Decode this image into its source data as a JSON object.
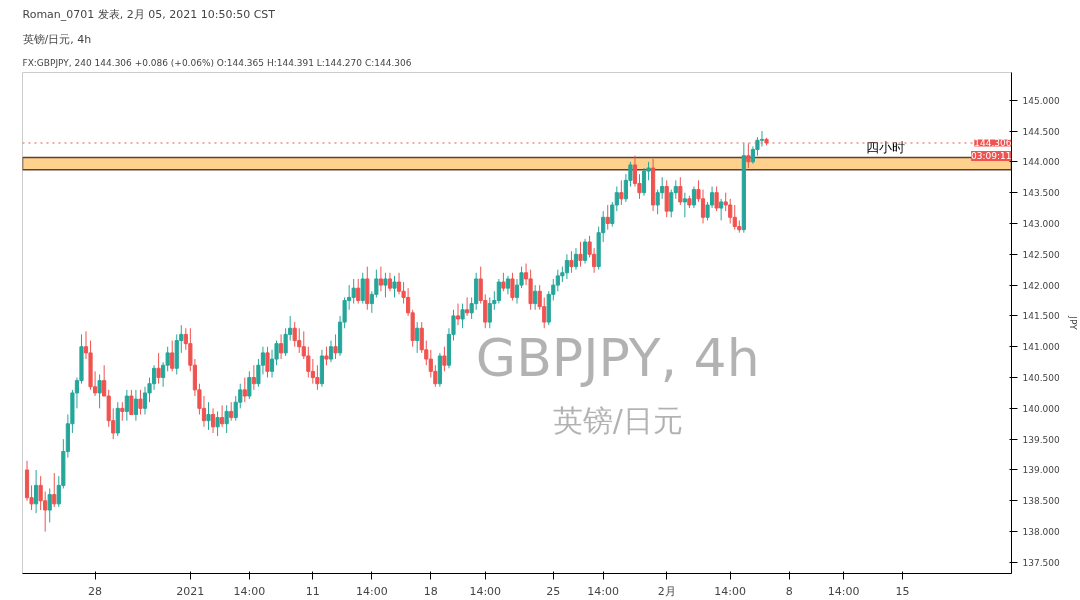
{
  "chart_data": {
    "type": "candlestick",
    "title": "Roman_0701 发表, 2月 05, 2021 10:50:50 CST",
    "subtitle": "FX:GBPJPY, 240 144.306 +0.086 (+0.06%) O:144.365 H:144.391 L:144.270 C:144.306",
    "ylabel": "JPY",
    "annotations": [
      "英镑/日元, 4h",
      "03:09:11",
      "GBPJPY, 4h",
      "英镑/日元"
    ],
    "categories": [
      null,
      null,
      null,
      null,
      null,
      null,
      null,
      null,
      null,
      null,
      null,
      null,
      null,
      null,
      null,
      "28",
      null,
      null,
      null,
      null,
      null,
      null,
      null,
      null,
      null,
      null,
      null,
      null,
      null,
      null,
      null,
      null,
      null,
      null,
      null,
      null,
      "2021",
      null,
      null,
      null,
      null,
      null,
      null,
      null,
      null,
      null,
      null,
      null,
      null,
      "14:00",
      null,
      null,
      null,
      null,
      null,
      null,
      null,
      null,
      null,
      null,
      null,
      null,
      null,
      "11",
      null,
      null,
      null,
      null,
      null,
      null,
      null,
      null,
      null,
      null,
      null,
      null,
      "14:00",
      null,
      null,
      null,
      null,
      null,
      null,
      null,
      null,
      null,
      null,
      null,
      null,
      "18",
      null,
      null,
      null,
      null,
      null,
      null,
      null,
      null,
      null,
      null,
      null,
      "14:00",
      null,
      null,
      null,
      null,
      null,
      null,
      null,
      null,
      null,
      null,
      null,
      null,
      null,
      null,
      "25",
      null,
      null,
      null,
      null,
      null,
      null,
      null,
      null,
      null,
      null,
      "14:00",
      null,
      null,
      null,
      null,
      null,
      null,
      null,
      null,
      null,
      null,
      null,
      null,
      null,
      "2月",
      null,
      null,
      null,
      null,
      null,
      null,
      null,
      null,
      null,
      null,
      null,
      null,
      null,
      "14:00",
      null,
      null,
      null,
      null,
      null,
      null,
      null,
      null,
      null,
      null,
      null,
      null,
      "8",
      null,
      null,
      null,
      null,
      null,
      null,
      null,
      null,
      null,
      null,
      null,
      "14:00",
      null,
      null,
      null,
      null,
      null,
      null,
      null,
      null,
      null,
      null,
      null,
      null,
      "15",
      null,
      null,
      null,
      null,
      null,
      null,
      null,
      null,
      null,
      null,
      null,
      null,
      null,
      null,
      null,
      null,
      null,
      null,
      null,
      null,
      null,
      null,
      null
    ],
    "ohlc": [
      [
        139.0,
        139.15,
        138.5,
        138.55
      ],
      [
        138.55,
        138.75,
        138.35,
        138.45
      ],
      [
        138.45,
        139.0,
        138.3,
        138.75
      ],
      [
        138.75,
        138.9,
        138.35,
        138.5
      ],
      [
        138.5,
        138.65,
        138.0,
        138.35
      ],
      [
        138.35,
        138.7,
        138.15,
        138.6
      ],
      [
        138.6,
        138.95,
        138.4,
        138.45
      ],
      [
        138.45,
        138.9,
        138.4,
        138.75
      ],
      [
        138.75,
        139.5,
        138.7,
        139.3
      ],
      [
        139.3,
        139.9,
        139.2,
        139.75
      ],
      [
        139.75,
        140.3,
        139.6,
        140.25
      ],
      [
        140.25,
        140.5,
        140.0,
        140.45
      ],
      [
        140.45,
        141.2,
        140.4,
        141.0
      ],
      [
        141.0,
        141.25,
        140.8,
        140.9
      ],
      [
        140.9,
        141.1,
        140.3,
        140.35
      ],
      [
        140.35,
        140.6,
        140.2,
        140.25
      ],
      [
        140.25,
        140.55,
        140.0,
        140.45
      ],
      [
        140.45,
        140.7,
        140.2,
        140.2
      ],
      [
        140.2,
        140.3,
        139.7,
        139.8
      ],
      [
        139.8,
        140.0,
        139.5,
        139.6
      ],
      [
        139.6,
        140.1,
        139.55,
        140.0
      ],
      [
        140.0,
        140.1,
        139.8,
        139.95
      ],
      [
        139.95,
        140.3,
        139.8,
        140.2
      ],
      [
        140.2,
        140.3,
        139.9,
        139.9
      ],
      [
        139.9,
        140.3,
        139.8,
        140.15
      ],
      [
        140.15,
        140.3,
        139.9,
        140.0
      ],
      [
        140.0,
        140.35,
        139.9,
        140.25
      ],
      [
        140.25,
        140.5,
        140.1,
        140.4
      ],
      [
        140.4,
        140.7,
        140.3,
        140.65
      ],
      [
        140.65,
        140.9,
        140.4,
        140.5
      ],
      [
        140.5,
        140.75,
        140.35,
        140.7
      ],
      [
        140.7,
        141.0,
        140.6,
        140.9
      ],
      [
        140.9,
        141.1,
        140.6,
        140.65
      ],
      [
        140.65,
        141.2,
        140.55,
        141.1
      ],
      [
        141.1,
        141.35,
        140.9,
        141.2
      ],
      [
        141.2,
        141.3,
        140.95,
        141.05
      ],
      [
        141.05,
        141.3,
        140.6,
        140.7
      ],
      [
        140.7,
        140.8,
        140.2,
        140.3
      ],
      [
        140.3,
        140.4,
        139.9,
        140.0
      ],
      [
        140.0,
        140.2,
        139.7,
        139.8
      ],
      [
        139.8,
        140.1,
        139.65,
        139.9
      ],
      [
        139.9,
        140.0,
        139.6,
        139.7
      ],
      [
        139.7,
        139.95,
        139.55,
        139.85
      ],
      [
        139.85,
        140.05,
        139.7,
        139.75
      ],
      [
        139.75,
        140.05,
        139.6,
        139.95
      ],
      [
        139.95,
        140.1,
        139.8,
        139.85
      ],
      [
        139.85,
        140.2,
        139.8,
        140.1
      ],
      [
        140.1,
        140.4,
        140.0,
        140.3
      ],
      [
        140.3,
        140.5,
        140.1,
        140.2
      ],
      [
        140.2,
        140.6,
        140.15,
        140.5
      ],
      [
        140.5,
        140.7,
        140.3,
        140.4
      ],
      [
        140.4,
        140.8,
        140.35,
        140.7
      ],
      [
        140.7,
        141.0,
        140.55,
        140.9
      ],
      [
        140.9,
        141.0,
        140.5,
        140.6
      ],
      [
        140.6,
        140.95,
        140.5,
        140.8
      ],
      [
        140.8,
        141.1,
        140.7,
        141.05
      ],
      [
        141.05,
        141.2,
        140.8,
        140.9
      ],
      [
        140.9,
        141.3,
        140.85,
        141.2
      ],
      [
        141.2,
        141.5,
        141.1,
        141.3
      ],
      [
        141.3,
        141.4,
        141.0,
        141.1
      ],
      [
        141.1,
        141.3,
        140.9,
        141.0
      ],
      [
        141.0,
        141.25,
        140.8,
        140.85
      ],
      [
        140.85,
        141.0,
        140.5,
        140.6
      ],
      [
        140.6,
        140.8,
        140.4,
        140.5
      ],
      [
        140.5,
        140.7,
        140.3,
        140.4
      ],
      [
        140.4,
        140.95,
        140.35,
        140.85
      ],
      [
        140.85,
        141.0,
        140.7,
        140.8
      ],
      [
        140.8,
        141.1,
        140.75,
        141.0
      ],
      [
        141.0,
        141.2,
        140.8,
        140.9
      ],
      [
        140.9,
        141.5,
        140.85,
        141.4
      ],
      [
        141.4,
        141.8,
        141.3,
        141.75
      ],
      [
        141.75,
        142.0,
        141.6,
        141.8
      ],
      [
        141.8,
        142.1,
        141.7,
        141.95
      ],
      [
        141.95,
        142.1,
        141.7,
        141.75
      ],
      [
        141.75,
        142.2,
        141.7,
        142.1
      ],
      [
        142.1,
        142.3,
        141.6,
        141.7
      ],
      [
        141.7,
        141.9,
        141.55,
        141.85
      ],
      [
        141.85,
        142.25,
        141.8,
        142.1
      ],
      [
        142.1,
        142.3,
        141.9,
        142.0
      ],
      [
        142.0,
        142.2,
        141.8,
        142.1
      ],
      [
        142.1,
        142.2,
        141.9,
        141.95
      ],
      [
        141.95,
        142.15,
        141.8,
        142.05
      ],
      [
        142.05,
        142.2,
        141.85,
        141.9
      ],
      [
        141.9,
        142.05,
        141.7,
        141.8
      ],
      [
        141.8,
        141.95,
        141.5,
        141.55
      ],
      [
        141.55,
        141.6,
        141.0,
        141.1
      ],
      [
        141.1,
        141.4,
        140.9,
        141.3
      ],
      [
        141.3,
        141.4,
        140.9,
        140.95
      ],
      [
        140.95,
        141.1,
        140.7,
        140.8
      ],
      [
        140.8,
        140.95,
        140.5,
        140.6
      ],
      [
        140.6,
        140.7,
        140.35,
        140.4
      ],
      [
        140.4,
        140.9,
        140.35,
        140.85
      ],
      [
        140.85,
        141.0,
        140.6,
        140.7
      ],
      [
        140.7,
        141.3,
        140.65,
        141.2
      ],
      [
        141.2,
        141.6,
        141.1,
        141.5
      ],
      [
        141.5,
        141.7,
        141.35,
        141.45
      ],
      [
        141.45,
        141.7,
        141.3,
        141.6
      ],
      [
        141.6,
        141.8,
        141.5,
        141.55
      ],
      [
        141.55,
        141.8,
        141.45,
        141.7
      ],
      [
        141.7,
        142.2,
        141.6,
        142.1
      ],
      [
        142.1,
        142.3,
        141.7,
        141.75
      ],
      [
        141.75,
        141.85,
        141.3,
        141.4
      ],
      [
        141.4,
        141.8,
        141.3,
        141.7
      ],
      [
        141.7,
        141.9,
        141.6,
        141.75
      ],
      [
        141.75,
        142.1,
        141.7,
        142.05
      ],
      [
        142.05,
        142.2,
        141.9,
        141.95
      ],
      [
        141.95,
        142.15,
        141.85,
        142.1
      ],
      [
        142.1,
        142.2,
        141.75,
        141.8
      ],
      [
        141.8,
        142.1,
        141.7,
        142.0
      ],
      [
        142.0,
        142.3,
        141.95,
        142.2
      ],
      [
        142.2,
        142.35,
        142.0,
        142.1
      ],
      [
        142.1,
        142.25,
        141.6,
        141.7
      ],
      [
        141.7,
        142.0,
        141.6,
        141.9
      ],
      [
        141.9,
        142.0,
        141.6,
        141.65
      ],
      [
        141.65,
        141.8,
        141.3,
        141.4
      ],
      [
        141.4,
        141.9,
        141.35,
        141.85
      ],
      [
        141.85,
        142.1,
        141.75,
        142.0
      ],
      [
        142.0,
        142.25,
        141.9,
        142.15
      ],
      [
        142.15,
        142.3,
        142.05,
        142.2
      ],
      [
        142.2,
        142.5,
        142.1,
        142.4
      ],
      [
        142.4,
        142.55,
        142.2,
        142.3
      ],
      [
        142.3,
        142.6,
        142.25,
        142.5
      ],
      [
        142.5,
        142.7,
        142.3,
        142.4
      ],
      [
        142.4,
        142.75,
        142.35,
        142.7
      ],
      [
        142.7,
        142.8,
        142.45,
        142.5
      ],
      [
        142.5,
        142.6,
        142.2,
        142.3
      ],
      [
        142.3,
        142.95,
        142.25,
        142.85
      ],
      [
        142.85,
        143.2,
        142.7,
        143.1
      ],
      [
        143.1,
        143.3,
        142.9,
        143.0
      ],
      [
        143.0,
        143.35,
        142.95,
        143.3
      ],
      [
        143.3,
        143.6,
        143.2,
        143.5
      ],
      [
        143.5,
        143.7,
        143.3,
        143.4
      ],
      [
        143.4,
        143.8,
        143.35,
        143.7
      ],
      [
        143.7,
        144.0,
        143.6,
        143.95
      ],
      [
        143.95,
        144.1,
        143.6,
        143.65
      ],
      [
        143.65,
        143.8,
        143.4,
        143.5
      ],
      [
        143.5,
        143.9,
        143.45,
        143.85
      ],
      [
        143.85,
        144.0,
        143.7,
        143.9
      ],
      [
        143.9,
        144.05,
        143.2,
        143.3
      ],
      [
        143.3,
        143.55,
        143.15,
        143.5
      ],
      [
        143.5,
        143.75,
        143.4,
        143.6
      ],
      [
        143.6,
        143.7,
        143.1,
        143.2
      ],
      [
        143.2,
        143.55,
        143.1,
        143.5
      ],
      [
        143.5,
        143.7,
        143.4,
        143.6
      ],
      [
        143.6,
        143.75,
        143.3,
        143.35
      ],
      [
        143.35,
        143.5,
        143.1,
        143.4
      ],
      [
        143.4,
        143.45,
        143.25,
        143.3
      ],
      [
        143.3,
        143.6,
        143.25,
        143.55
      ],
      [
        143.55,
        143.7,
        143.35,
        143.4
      ],
      [
        143.4,
        143.55,
        143.0,
        143.1
      ],
      [
        143.1,
        143.35,
        143.05,
        143.3
      ],
      [
        143.3,
        143.6,
        143.25,
        143.5
      ],
      [
        143.5,
        143.6,
        143.2,
        143.25
      ],
      [
        143.25,
        143.4,
        143.05,
        143.35
      ],
      [
        143.35,
        143.5,
        143.2,
        143.3
      ],
      [
        143.3,
        143.4,
        143.0,
        143.1
      ],
      [
        143.1,
        143.3,
        142.9,
        142.95
      ],
      [
        142.95,
        143.05,
        142.85,
        142.9
      ],
      [
        142.9,
        144.3,
        142.85,
        144.1
      ],
      [
        144.1,
        144.3,
        143.9,
        144.0
      ],
      [
        144.0,
        144.25,
        143.97,
        144.2
      ],
      [
        144.2,
        144.4,
        144.1,
        144.35
      ],
      [
        144.35,
        144.5,
        144.25,
        144.365
      ],
      [
        144.365,
        144.391,
        144.27,
        144.306
      ],
      null,
      null,
      null,
      null,
      null,
      null,
      null,
      null,
      null,
      null,
      null,
      null,
      null,
      null,
      null,
      null,
      null,
      null,
      null,
      null,
      null,
      null,
      null,
      null,
      null,
      null,
      null,
      null,
      null,
      null,
      null,
      null,
      null,
      null,
      null,
      null,
      null,
      null,
      null,
      null,
      null,
      null,
      null,
      null,
      null,
      null,
      null,
      null,
      null,
      null,
      null,
      null,
      null
    ],
    "colors": [
      "#ef5350",
      "#ef5350",
      "#26a69a",
      "#ef5350",
      "#ef5350",
      "#26a69a",
      "#ef5350",
      "#26a69a",
      "#26a69a",
      "#26a69a",
      "#26a69a",
      "#26a69a",
      "#26a69a",
      "#ef5350",
      "#ef5350",
      "#ef5350",
      "#26a69a",
      "#ef5350",
      "#ef5350",
      "#ef5350",
      "#26a69a",
      "#ef5350",
      "#26a69a",
      "#ef5350",
      "#26a69a",
      "#ef5350",
      "#26a69a",
      "#26a69a",
      "#26a69a",
      "#ef5350",
      "#26a69a",
      "#26a69a",
      "#ef5350",
      "#26a69a",
      "#26a69a",
      "#ef5350",
      "#ef5350",
      "#ef5350",
      "#ef5350",
      "#ef5350",
      "#26a69a",
      "#ef5350",
      "#26a69a",
      "#ef5350",
      "#26a69a",
      "#ef5350",
      "#26a69a",
      "#26a69a",
      "#ef5350",
      "#26a69a",
      "#ef5350",
      "#26a69a",
      "#26a69a",
      "#ef5350",
      "#26a69a",
      "#26a69a",
      "#ef5350",
      "#26a69a",
      "#26a69a",
      "#ef5350",
      "#ef5350",
      "#ef5350",
      "#ef5350",
      "#ef5350",
      "#ef5350",
      "#26a69a",
      "#ef5350",
      "#26a69a",
      "#ef5350",
      "#26a69a",
      "#26a69a",
      "#26a69a",
      "#26a69a",
      "#ef5350",
      "#26a69a",
      "#ef5350",
      "#26a69a",
      "#26a69a",
      "#ef5350",
      "#26a69a",
      "#ef5350",
      "#26a69a",
      "#ef5350",
      "#ef5350",
      "#ef5350",
      "#ef5350",
      "#26a69a",
      "#ef5350",
      "#ef5350",
      "#ef5350",
      "#ef5350",
      "#26a69a",
      "#ef5350",
      "#26a69a",
      "#26a69a",
      "#ef5350",
      "#26a69a",
      "#ef5350",
      "#26a69a",
      "#26a69a",
      "#ef5350",
      "#ef5350",
      "#26a69a",
      "#26a69a",
      "#26a69a",
      "#ef5350",
      "#26a69a",
      "#ef5350",
      "#26a69a",
      "#26a69a",
      "#ef5350",
      "#ef5350",
      "#26a69a",
      "#ef5350",
      "#ef5350",
      "#26a69a",
      "#26a69a",
      "#26a69a",
      "#26a69a",
      "#26a69a",
      "#ef5350",
      "#26a69a",
      "#ef5350",
      "#26a69a",
      "#ef5350",
      "#ef5350",
      "#26a69a",
      "#26a69a",
      "#ef5350",
      "#26a69a",
      "#26a69a",
      "#ef5350",
      "#26a69a",
      "#26a69a",
      "#ef5350",
      "#ef5350",
      "#26a69a",
      "#26a69a",
      "#ef5350",
      "#26a69a",
      "#26a69a",
      "#ef5350",
      "#26a69a",
      "#26a69a",
      "#ef5350",
      "#26a69a",
      "#ef5350",
      "#26a69a",
      "#ef5350",
      "#ef5350",
      "#26a69a",
      "#26a69a",
      "#ef5350",
      "#26a69a",
      "#ef5350",
      "#ef5350",
      "#ef5350",
      "#ef5350",
      "#26a69a",
      "#ef5350",
      "#26a69a",
      "#26a69a",
      "#26a69a",
      "#ef5350",
      null,
      null,
      null,
      null,
      null,
      null,
      null,
      null,
      null,
      null,
      null,
      null,
      null,
      null,
      null,
      null,
      null,
      null,
      null,
      null,
      null,
      null,
      null,
      null,
      null,
      null,
      null,
      null,
      null,
      null,
      null,
      null,
      null,
      null,
      null,
      null,
      null,
      null,
      null,
      null,
      null,
      null,
      null,
      null,
      null,
      null,
      null,
      null,
      null,
      null,
      null,
      null,
      null
    ],
    "ylim": [
      137.32,
      145.45
    ],
    "yticks": [
      {
        "value": 137.5,
        "label": "137.500"
      },
      {
        "value": 138.0,
        "label": "138.000"
      },
      {
        "value": 138.5,
        "label": "138.500"
      },
      {
        "value": 139.0,
        "label": "139.000"
      },
      {
        "value": 139.5,
        "label": "139.500"
      },
      {
        "value": 140.0,
        "label": "140.000"
      },
      {
        "value": 140.5,
        "label": "140.500"
      },
      {
        "value": 141.0,
        "label": "141.000"
      },
      {
        "value": 141.5,
        "label": "141.500"
      },
      {
        "value": 142.0,
        "label": "142.000"
      },
      {
        "value": 142.5,
        "label": "142.500"
      },
      {
        "value": 143.0,
        "label": "143.000"
      },
      {
        "value": 143.5,
        "label": "143.500"
      },
      {
        "value": 144.0,
        "label": "144.000"
      },
      {
        "value": 144.5,
        "label": "144.500"
      },
      {
        "value": 145.0,
        "label": "145.000"
      }
    ],
    "ref_lines": [
      {
        "axis": "y",
        "value": 144.306,
        "label": "144.306",
        "color": "#ef5350",
        "line_style": "dotted"
      }
    ],
    "bands": [
      {
        "axis": "y",
        "from": 143.87,
        "to": 144.07,
        "label": "四小时",
        "color": "#ffcc80"
      }
    ],
    "grid": false
  }
}
